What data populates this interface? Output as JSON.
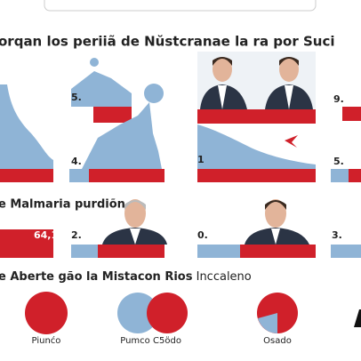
{
  "header": {
    "title": "orqan los periiã de Nŭstcranae la ra por Suci"
  },
  "panels": {
    "row1": [
      "5.",
      "9."
    ],
    "row2": [
      "4.",
      "1",
      "5."
    ],
    "row3": [
      "64,1",
      "2.",
      "0.",
      "3."
    ]
  },
  "sections": [
    {
      "title": "e Malmaria purdiõn"
    },
    {
      "title": "e Aberte gão la Mistacon Rios",
      "subtitle": "Inccaleno"
    }
  ],
  "pies": {
    "labels": [
      "Piunćo",
      "Pumco",
      "C5ödo",
      "Osado"
    ]
  }
}
